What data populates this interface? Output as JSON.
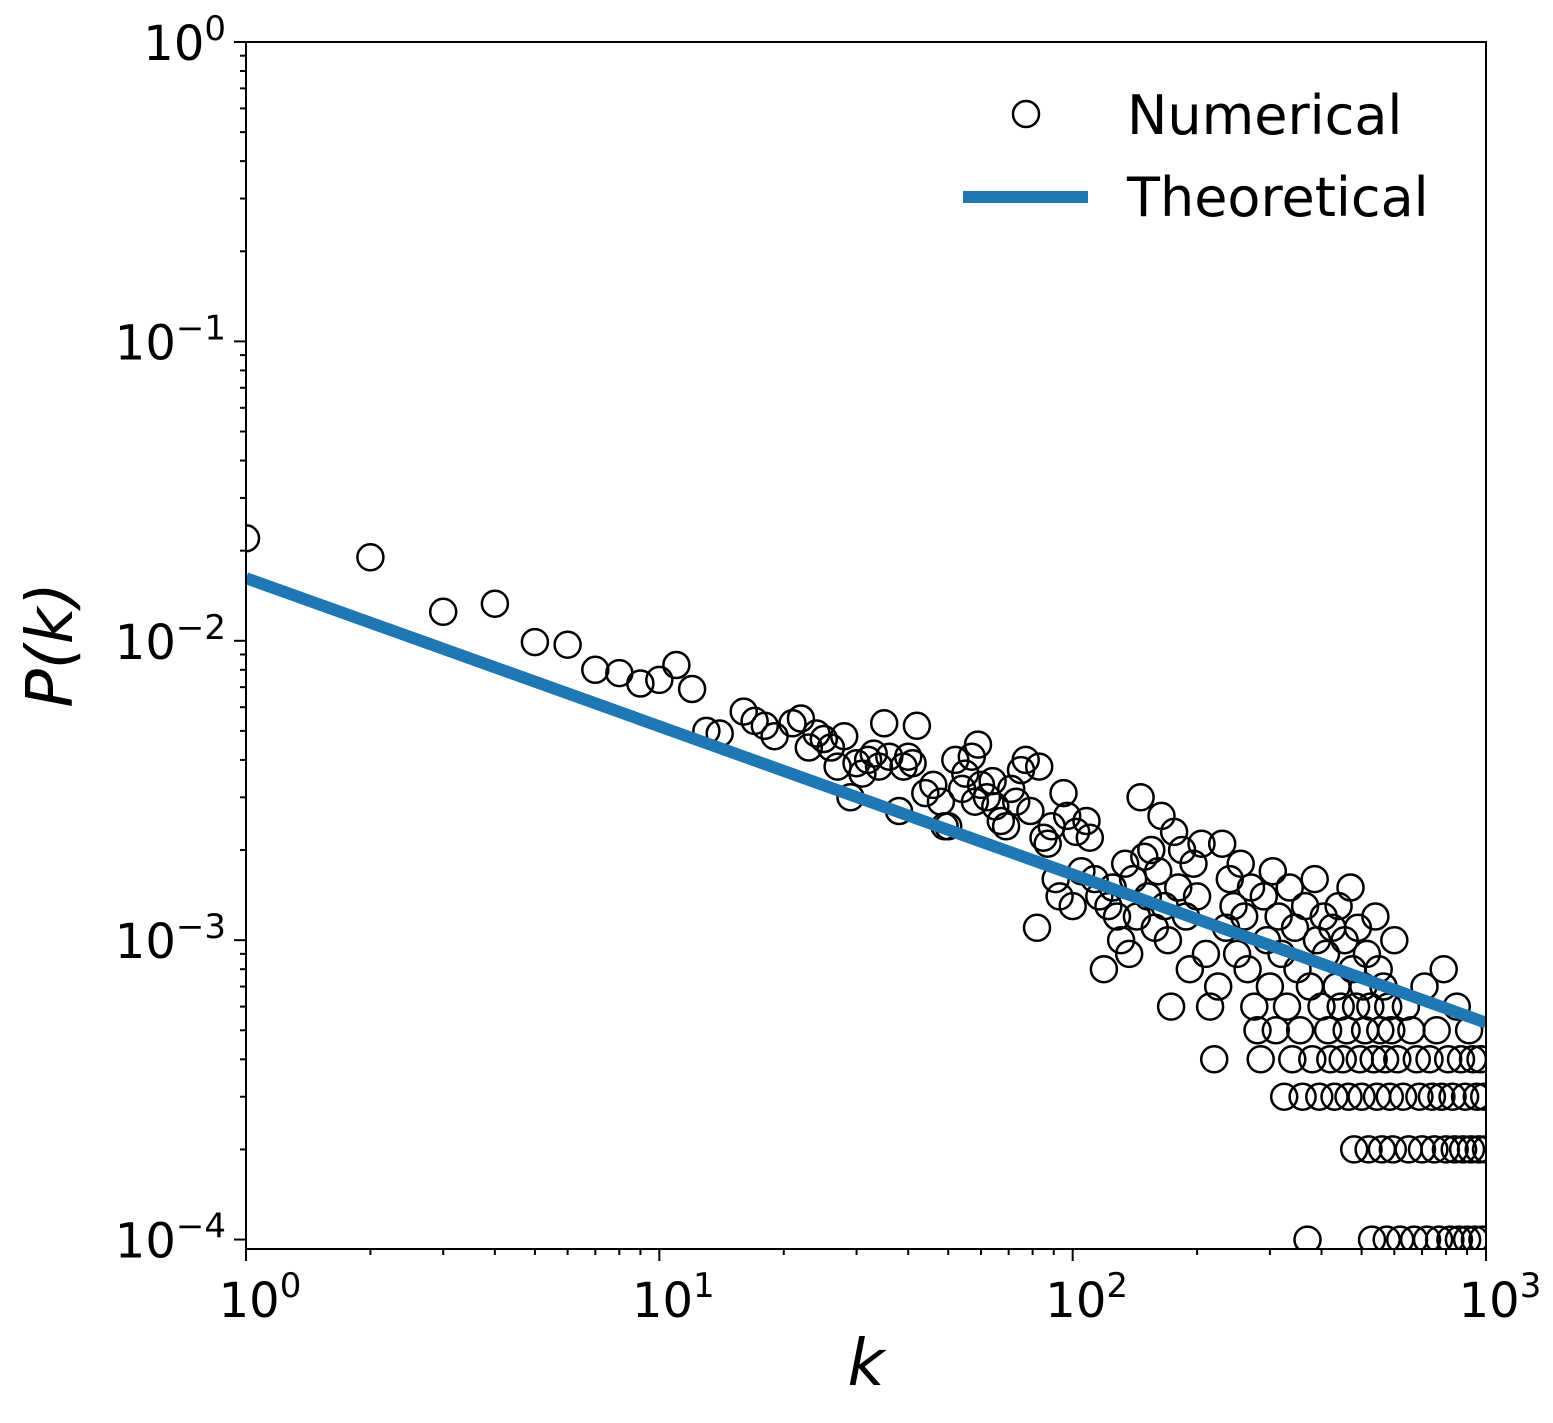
{
  "chart_data": {
    "type": "scatter",
    "title": "",
    "xlabel": "k",
    "ylabel": "P(k)",
    "xscale": "log",
    "yscale": "log",
    "xlim": [
      1,
      1000
    ],
    "ylim": [
      9.3e-05,
      1
    ],
    "x_ticks": [
      {
        "base": "10",
        "exp": "0",
        "value": 1
      },
      {
        "base": "10",
        "exp": "1",
        "value": 10
      },
      {
        "base": "10",
        "exp": "2",
        "value": 100
      },
      {
        "base": "10",
        "exp": "3",
        "value": 1000
      }
    ],
    "y_ticks": [
      {
        "base": "10",
        "exp": "0",
        "value": 1
      },
      {
        "base": "10",
        "exp": "−1",
        "value": 0.1
      },
      {
        "base": "10",
        "exp": "−2",
        "value": 0.01
      },
      {
        "base": "10",
        "exp": "−3",
        "value": 0.001
      },
      {
        "base": "10",
        "exp": "−4",
        "value": 0.0001
      }
    ],
    "grid": false,
    "legend": {
      "position": "top-right",
      "entries": [
        "Numerical",
        "Theoretical"
      ]
    },
    "series": [
      {
        "name": "Numerical",
        "style": "open-circle",
        "color": "#000000",
        "points": [
          [
            1,
            0.022
          ],
          [
            2,
            0.019
          ],
          [
            3,
            0.0125
          ],
          [
            4,
            0.0133
          ],
          [
            5,
            0.0099
          ],
          [
            6,
            0.0097
          ],
          [
            7,
            0.008
          ],
          [
            8,
            0.0078
          ],
          [
            9,
            0.0072
          ],
          [
            10,
            0.0074
          ],
          [
            11,
            0.0083
          ],
          [
            12,
            0.0069
          ],
          [
            13,
            0.005
          ],
          [
            14,
            0.0049
          ],
          [
            16,
            0.0058
          ],
          [
            17,
            0.0054
          ],
          [
            18,
            0.0052
          ],
          [
            19,
            0.0048
          ],
          [
            21,
            0.0053
          ],
          [
            22,
            0.0055
          ],
          [
            23,
            0.0044
          ],
          [
            24,
            0.0049
          ],
          [
            25,
            0.0047
          ],
          [
            26,
            0.0044
          ],
          [
            27,
            0.0038
          ],
          [
            28,
            0.0048
          ],
          [
            29,
            0.003
          ],
          [
            30,
            0.0039
          ],
          [
            31,
            0.0036
          ],
          [
            32,
            0.004
          ],
          [
            33,
            0.0042
          ],
          [
            34,
            0.0038
          ],
          [
            35,
            0.0053
          ],
          [
            36,
            0.0041
          ],
          [
            38,
            0.0027
          ],
          [
            39,
            0.0038
          ],
          [
            40,
            0.0041
          ],
          [
            41,
            0.0039
          ],
          [
            42,
            0.0052
          ],
          [
            44,
            0.0031
          ],
          [
            46,
            0.0033
          ],
          [
            48,
            0.0029
          ],
          [
            49,
            0.0024
          ],
          [
            50,
            0.0024
          ],
          [
            52,
            0.004
          ],
          [
            54,
            0.0032
          ],
          [
            55,
            0.0036
          ],
          [
            57,
            0.0041
          ],
          [
            58,
            0.0029
          ],
          [
            59,
            0.0045
          ],
          [
            60,
            0.0033
          ],
          [
            62,
            0.003
          ],
          [
            64,
            0.0034
          ],
          [
            65,
            0.0028
          ],
          [
            67,
            0.0025
          ],
          [
            69,
            0.0024
          ],
          [
            71,
            0.0032
          ],
          [
            73,
            0.0029
          ],
          [
            75,
            0.0037
          ],
          [
            77,
            0.004
          ],
          [
            79,
            0.0027
          ],
          [
            82,
            0.0011
          ],
          [
            83,
            0.0038
          ],
          [
            85,
            0.0022
          ],
          [
            87,
            0.0021
          ],
          [
            89,
            0.0024
          ],
          [
            91,
            0.0016
          ],
          [
            93,
            0.0014
          ],
          [
            95,
            0.0031
          ],
          [
            97,
            0.0026
          ],
          [
            100,
            0.0013
          ],
          [
            102,
            0.0023
          ],
          [
            105,
            0.0017
          ],
          [
            108,
            0.0025
          ],
          [
            110,
            0.0022
          ],
          [
            113,
            0.0016
          ],
          [
            116,
            0.0014
          ],
          [
            119,
            0.0008
          ],
          [
            122,
            0.0013
          ],
          [
            125,
            0.0015
          ],
          [
            128,
            0.0012
          ],
          [
            131,
            0.001
          ],
          [
            134,
            0.0018
          ],
          [
            137,
            0.0009
          ],
          [
            140,
            0.0016
          ],
          [
            143,
            0.0012
          ],
          [
            146,
            0.003
          ],
          [
            149,
            0.0019
          ],
          [
            152,
            0.0014
          ],
          [
            155,
            0.002
          ],
          [
            158,
            0.0011
          ],
          [
            161,
            0.0017
          ],
          [
            164,
            0.0026
          ],
          [
            167,
            0.0013
          ],
          [
            170,
            0.001
          ],
          [
            173,
            0.0006
          ],
          [
            176,
            0.0023
          ],
          [
            180,
            0.0015
          ],
          [
            184,
            0.002
          ],
          [
            188,
            0.0012
          ],
          [
            192,
            0.0008
          ],
          [
            196,
            0.0018
          ],
          [
            200,
            0.0014
          ],
          [
            205,
            0.0021
          ],
          [
            210,
            0.0009
          ],
          [
            215,
            0.0006
          ],
          [
            220,
            0.0004
          ],
          [
            225,
            0.0007
          ],
          [
            230,
            0.0021
          ],
          [
            235,
            0.0011
          ],
          [
            240,
            0.0016
          ],
          [
            245,
            0.0013
          ],
          [
            250,
            0.0009
          ],
          [
            255,
            0.0018
          ],
          [
            260,
            0.0012
          ],
          [
            265,
            0.0008
          ],
          [
            270,
            0.0015
          ],
          [
            275,
            0.0006
          ],
          [
            280,
            0.0005
          ],
          [
            285,
            0.0004
          ],
          [
            290,
            0.0014
          ],
          [
            295,
            0.001
          ],
          [
            300,
            0.0007
          ],
          [
            305,
            0.0017
          ],
          [
            310,
            0.0005
          ],
          [
            315,
            0.0012
          ],
          [
            320,
            0.0009
          ],
          [
            325,
            0.0003
          ],
          [
            330,
            0.0006
          ],
          [
            335,
            0.0015
          ],
          [
            340,
            0.0004
          ],
          [
            345,
            0.0011
          ],
          [
            350,
            0.0008
          ],
          [
            355,
            0.0005
          ],
          [
            360,
            0.0003
          ],
          [
            365,
            0.0013
          ],
          [
            370,
            0.0001
          ],
          [
            375,
            0.0007
          ],
          [
            380,
            0.0004
          ],
          [
            385,
            0.0016
          ],
          [
            390,
            0.001
          ],
          [
            395,
            0.0003
          ],
          [
            400,
            0.0006
          ],
          [
            405,
            0.0012
          ],
          [
            410,
            0.0009
          ],
          [
            415,
            0.0005
          ],
          [
            420,
            0.0004
          ],
          [
            425,
            0.0011
          ],
          [
            430,
            0.0003
          ],
          [
            435,
            0.0007
          ],
          [
            440,
            0.0013
          ],
          [
            445,
            0.0006
          ],
          [
            450,
            0.0004
          ],
          [
            455,
            0.001
          ],
          [
            460,
            0.0005
          ],
          [
            465,
            0.0003
          ],
          [
            470,
            0.0015
          ],
          [
            475,
            0.0008
          ],
          [
            480,
            0.0002
          ],
          [
            485,
            0.0006
          ],
          [
            490,
            0.0011
          ],
          [
            495,
            0.0004
          ],
          [
            500,
            0.0003
          ],
          [
            505,
            0.0007
          ],
          [
            510,
            0.0005
          ],
          [
            515,
            0.0009
          ],
          [
            520,
            0.0002
          ],
          [
            525,
            0.0006
          ],
          [
            530,
            0.0001
          ],
          [
            535,
            0.0004
          ],
          [
            540,
            0.0012
          ],
          [
            545,
            0.0003
          ],
          [
            550,
            0.0008
          ],
          [
            555,
            0.0005
          ],
          [
            560,
            0.0002
          ],
          [
            565,
            0.0007
          ],
          [
            570,
            0.0004
          ],
          [
            575,
            0.0001
          ],
          [
            580,
            0.0006
          ],
          [
            585,
            0.0003
          ],
          [
            590,
            0.0005
          ],
          [
            595,
            0.0002
          ],
          [
            600,
            0.001
          ],
          [
            610,
            0.0004
          ],
          [
            620,
            0.0001
          ],
          [
            630,
            0.0003
          ],
          [
            640,
            0.0006
          ],
          [
            650,
            0.0002
          ],
          [
            660,
            0.0005
          ],
          [
            670,
            0.0001
          ],
          [
            680,
            0.0004
          ],
          [
            690,
            0.0003
          ],
          [
            700,
            0.0002
          ],
          [
            710,
            0.0007
          ],
          [
            720,
            0.0001
          ],
          [
            730,
            0.0004
          ],
          [
            740,
            0.0003
          ],
          [
            750,
            0.0002
          ],
          [
            760,
            0.0005
          ],
          [
            770,
            0.0001
          ],
          [
            780,
            0.0003
          ],
          [
            790,
            0.0008
          ],
          [
            800,
            0.0002
          ],
          [
            810,
            0.0004
          ],
          [
            820,
            0.0001
          ],
          [
            830,
            0.0003
          ],
          [
            840,
            0.0002
          ],
          [
            850,
            0.0006
          ],
          [
            860,
            0.0001
          ],
          [
            870,
            0.0004
          ],
          [
            880,
            0.0002
          ],
          [
            890,
            0.0003
          ],
          [
            900,
            0.0001
          ],
          [
            910,
            0.0005
          ],
          [
            920,
            0.0002
          ],
          [
            930,
            0.0004
          ],
          [
            940,
            0.0001
          ],
          [
            950,
            0.0003
          ],
          [
            960,
            0.0002
          ],
          [
            970,
            0.0004
          ],
          [
            980,
            0.0001
          ],
          [
            990,
            0.0003
          ],
          [
            1000,
            0.0002
          ]
        ]
      },
      {
        "name": "Theoretical",
        "style": "line",
        "color": "#1f77b4",
        "points": [
          [
            1,
            0.0162
          ],
          [
            1000,
            0.00053
          ]
        ]
      }
    ]
  }
}
